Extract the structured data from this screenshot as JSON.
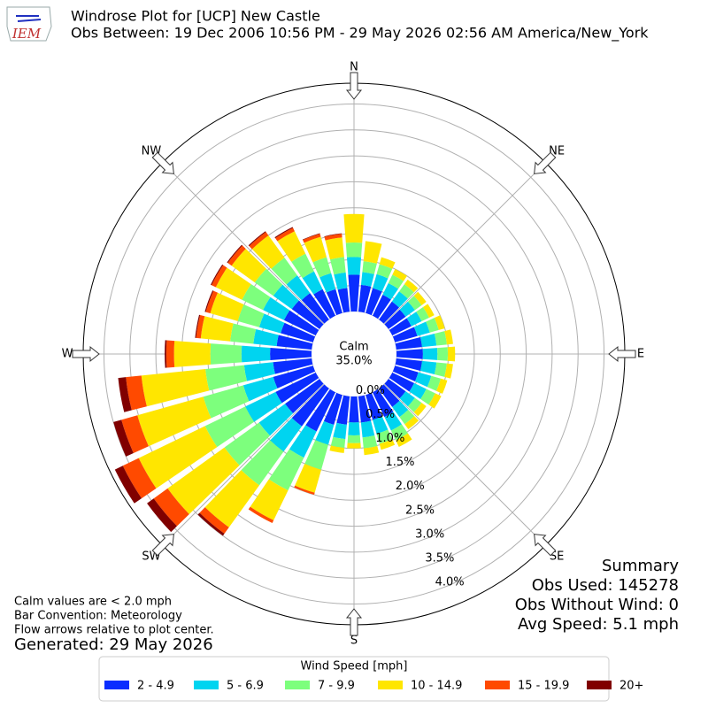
{
  "chart_data": {
    "type": "windrose",
    "title": "Windrose Plot for [UCP] New Castle",
    "subtitle": "Obs Between: 19 Dec 2006 10:56 PM - 29 May 2026 02:56 AM America/New_York",
    "logo_text": "IEM",
    "compass_labels": [
      "N",
      "NE",
      "E",
      "SE",
      "S",
      "SW",
      "W",
      "NW"
    ],
    "center_label": "Calm",
    "center_value": "35.0%",
    "x": [
      0,
      10,
      20,
      30,
      40,
      50,
      60,
      70,
      80,
      90,
      100,
      110,
      120,
      130,
      140,
      150,
      160,
      170,
      180,
      190,
      200,
      210,
      220,
      230,
      240,
      250,
      260,
      270,
      280,
      290,
      300,
      310,
      320,
      330,
      340,
      350
    ],
    "xlim": [
      0,
      360
    ],
    "rlim": [
      0,
      4.4
    ],
    "rticks": [
      {
        "value": 0,
        "label": "0.0%"
      },
      {
        "value": 0.5,
        "label": "0.5%"
      },
      {
        "value": 1,
        "label": "1.0%"
      },
      {
        "value": 1.5,
        "label": "1.5%"
      },
      {
        "value": 2,
        "label": "2.0%"
      },
      {
        "value": 2.5,
        "label": "2.5%"
      },
      {
        "value": 3,
        "label": "3.0%"
      },
      {
        "value": 3.5,
        "label": "3.5%"
      },
      {
        "value": 4,
        "label": "4.0%"
      }
    ],
    "grid": true,
    "legend_title": "Wind Speed [mph]",
    "legend_position": "bottom",
    "series": [
      {
        "name": "2 - 4.9",
        "color": "#0a2dff",
        "values": [
          0.71,
          0.52,
          0.5,
          0.45,
          0.43,
          0.41,
          0.41,
          0.45,
          0.5,
          0.51,
          0.5,
          0.47,
          0.47,
          0.41,
          0.44,
          0.53,
          0.5,
          0.51,
          0.5,
          0.55,
          0.6,
          0.84,
          0.9,
          0.82,
          0.86,
          0.8,
          0.75,
          0.8,
          0.68,
          0.65,
          0.68,
          0.66,
          0.63,
          0.57,
          0.48,
          0.46
        ]
      },
      {
        "name": "5 - 6.9",
        "color": "#00d4f0",
        "values": [
          0.34,
          0.25,
          0.28,
          0.25,
          0.24,
          0.22,
          0.22,
          0.25,
          0.28,
          0.28,
          0.28,
          0.26,
          0.26,
          0.22,
          0.24,
          0.29,
          0.28,
          0.29,
          0.25,
          0.28,
          0.4,
          0.56,
          0.6,
          0.62,
          0.65,
          0.6,
          0.56,
          0.55,
          0.45,
          0.43,
          0.45,
          0.44,
          0.42,
          0.38,
          0.32,
          0.3
        ]
      },
      {
        "name": "7 - 9.9",
        "color": "#7dff7d",
        "values": [
          0.28,
          0.21,
          0.2,
          0.18,
          0.17,
          0.16,
          0.16,
          0.18,
          0.2,
          0.2,
          0.2,
          0.19,
          0.19,
          0.16,
          0.17,
          0.21,
          0.2,
          0.21,
          0.15,
          0.17,
          0.5,
          0.7,
          0.8,
          0.82,
          0.86,
          0.8,
          0.75,
          0.6,
          0.45,
          0.43,
          0.45,
          0.44,
          0.42,
          0.38,
          0.32,
          0.3
        ]
      },
      {
        "name": "10 - 14.9",
        "color": "#ffe600",
        "values": [
          0.55,
          0.39,
          0.14,
          0.12,
          0.11,
          0.11,
          0.11,
          0.12,
          0.12,
          0.14,
          0.12,
          0.13,
          0.13,
          0.11,
          0.12,
          0.14,
          0.12,
          0.13,
          0.1,
          0.1,
          0.46,
          0.64,
          1.0,
          1.35,
          1.42,
          1.32,
          1.24,
          0.7,
          0.57,
          0.55,
          0.56,
          0.55,
          0.53,
          0.48,
          0.41,
          0.38
        ]
      },
      {
        "name": "15 - 19.9",
        "color": "#ff4a00",
        "values": [
          0,
          0,
          0,
          0,
          0,
          0,
          0,
          0,
          0,
          0,
          0,
          0,
          0,
          0,
          0,
          0,
          0,
          0,
          0,
          0,
          0.04,
          0.06,
          0.15,
          0.33,
          0.34,
          0.32,
          0.3,
          0.15,
          0.09,
          0.09,
          0.09,
          0.09,
          0.08,
          0.07,
          0.06,
          0.07
        ]
      },
      {
        "name": "20+",
        "color": "#800000",
        "values": [
          0,
          0,
          0,
          0,
          0,
          0,
          0,
          0,
          0,
          0,
          0,
          0,
          0,
          0,
          0,
          0,
          0,
          0,
          0,
          0,
          0,
          0,
          0.05,
          0.16,
          0.17,
          0.16,
          0.15,
          0.03,
          0.02,
          0.02,
          0.02,
          0.02,
          0.02,
          0.02,
          0.01,
          0.01
        ]
      }
    ],
    "notes": [
      "Calm values are < 2.0 mph",
      "Bar Convention: Meteorology",
      "Flow arrows relative to plot center."
    ],
    "generated": "Generated: 29 May 2026",
    "summary": [
      "Summary",
      "Obs Used: 145278",
      "Obs Without Wind: 0",
      "Avg Speed: 5.1 mph"
    ]
  }
}
